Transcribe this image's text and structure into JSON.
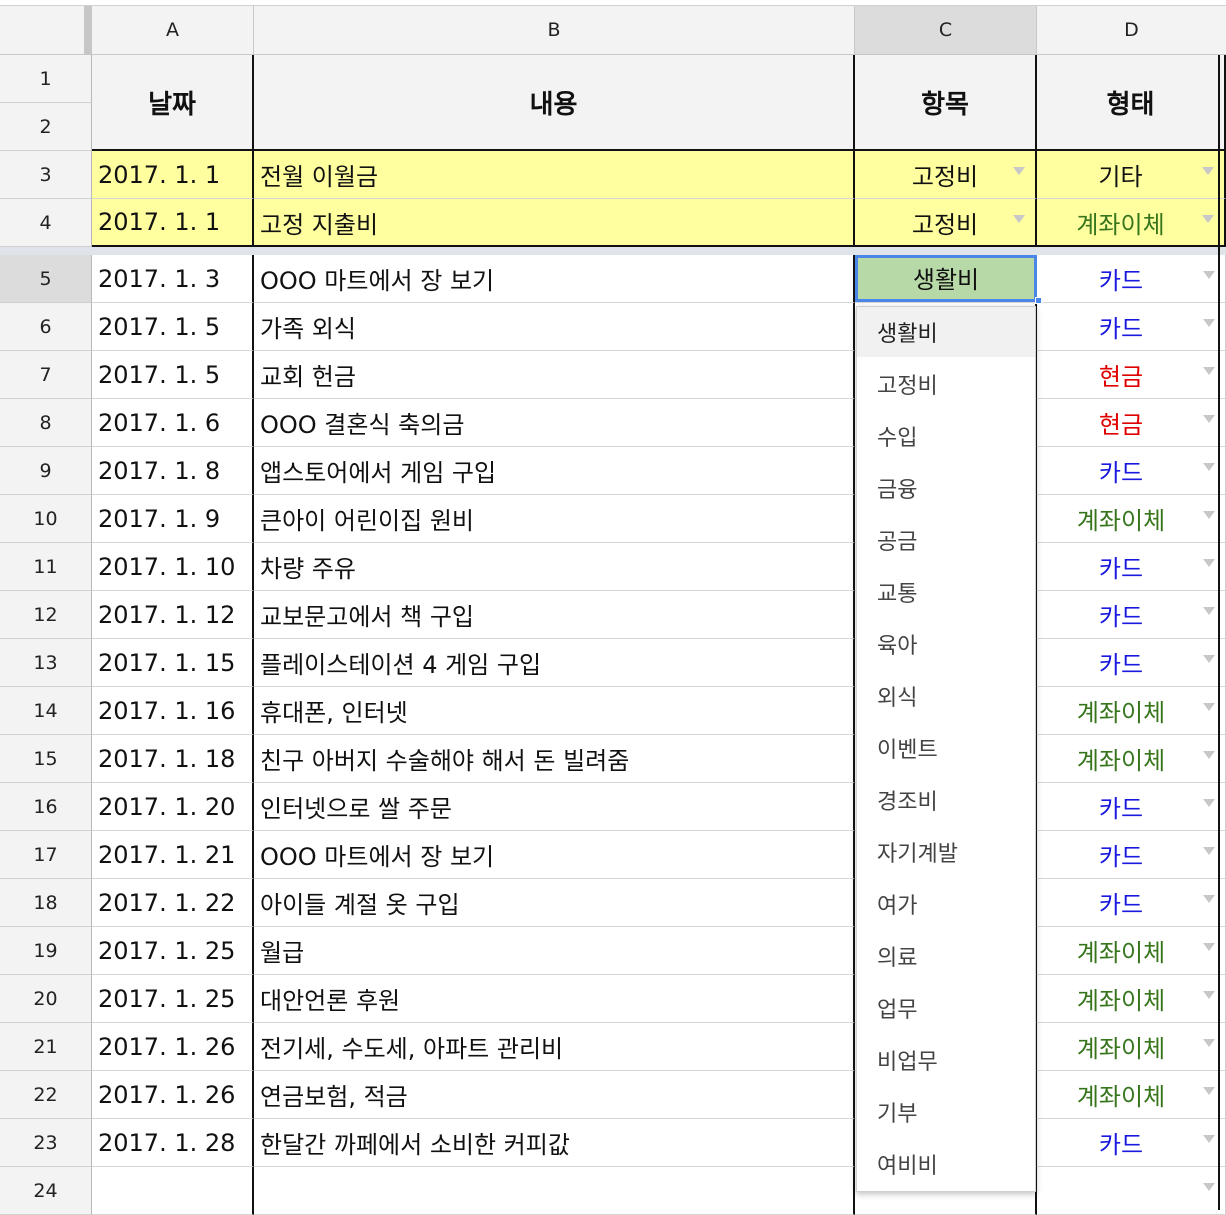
{
  "columns": [
    "A",
    "B",
    "C",
    "D"
  ],
  "header": {
    "date": "날짜",
    "desc": "내용",
    "category": "항목",
    "payment": "형태"
  },
  "colors": {
    "card": "#1a1adf",
    "cash": "#e00000",
    "transfer": "#38761d",
    "default": "#111111"
  },
  "rows": [
    {
      "num": "1"
    },
    {
      "num": "2"
    },
    {
      "num": "3",
      "date": "2017. 1. 1",
      "desc": "전월 이월금",
      "category": "고정비",
      "payment": "기타",
      "ptype": "default"
    },
    {
      "num": "4",
      "date": "2017. 1. 1",
      "desc": "고정 지출비",
      "category": "고정비",
      "payment": "계좌이체",
      "ptype": "transfer"
    },
    {
      "num": "5",
      "date": "2017. 1. 3",
      "desc": "OOO 마트에서 장 보기",
      "category": "생활비",
      "payment": "카드",
      "ptype": "card"
    },
    {
      "num": "6",
      "date": "2017. 1. 5",
      "desc": "가족 외식",
      "payment": "카드",
      "ptype": "card"
    },
    {
      "num": "7",
      "date": "2017. 1. 5",
      "desc": "교회 헌금",
      "payment": "현금",
      "ptype": "cash"
    },
    {
      "num": "8",
      "date": "2017. 1. 6",
      "desc": "OOO 결혼식 축의금",
      "payment": "현금",
      "ptype": "cash"
    },
    {
      "num": "9",
      "date": "2017. 1. 8",
      "desc": "앱스토어에서 게임 구입",
      "payment": "카드",
      "ptype": "card"
    },
    {
      "num": "10",
      "date": "2017. 1. 9",
      "desc": "큰아이 어린이집 원비",
      "payment": "계좌이체",
      "ptype": "transfer"
    },
    {
      "num": "11",
      "date": "2017. 1. 10",
      "desc": "차량 주유",
      "payment": "카드",
      "ptype": "card"
    },
    {
      "num": "12",
      "date": "2017. 1. 12",
      "desc": "교보문고에서 책 구입",
      "payment": "카드",
      "ptype": "card"
    },
    {
      "num": "13",
      "date": "2017. 1. 15",
      "desc": "플레이스테이션 4 게임 구입",
      "payment": "카드",
      "ptype": "card"
    },
    {
      "num": "14",
      "date": "2017. 1. 16",
      "desc": "휴대폰, 인터넷",
      "payment": "계좌이체",
      "ptype": "transfer"
    },
    {
      "num": "15",
      "date": "2017. 1. 18",
      "desc": "친구 아버지 수술해야 해서 돈 빌려줌",
      "payment": "계좌이체",
      "ptype": "transfer"
    },
    {
      "num": "16",
      "date": "2017. 1. 20",
      "desc": "인터넷으로 쌀 주문",
      "payment": "카드",
      "ptype": "card"
    },
    {
      "num": "17",
      "date": "2017. 1. 21",
      "desc": "OOO 마트에서 장 보기",
      "payment": "카드",
      "ptype": "card"
    },
    {
      "num": "18",
      "date": "2017. 1. 22",
      "desc": "아이들 계절 옷 구입",
      "payment": "카드",
      "ptype": "card"
    },
    {
      "num": "19",
      "date": "2017. 1. 25",
      "desc": "월급",
      "payment": "계좌이체",
      "ptype": "transfer"
    },
    {
      "num": "20",
      "date": "2017. 1. 25",
      "desc": "대안언론 후원",
      "payment": "계좌이체",
      "ptype": "transfer"
    },
    {
      "num": "21",
      "date": "2017. 1. 26",
      "desc": "전기세, 수도세, 아파트 관리비",
      "payment": "계좌이체",
      "ptype": "transfer"
    },
    {
      "num": "22",
      "date": "2017. 1. 26",
      "desc": "연금보험, 적금",
      "payment": "계좌이체",
      "ptype": "transfer"
    },
    {
      "num": "23",
      "date": "2017. 1. 28",
      "desc": "한달간 까페에서 소비한 커피값",
      "payment": "카드",
      "ptype": "card"
    },
    {
      "num": "24"
    }
  ],
  "selected_cell": {
    "value": "생활비"
  },
  "dropdown_options": [
    "생활비",
    "고정비",
    "수입",
    "금융",
    "공금",
    "교통",
    "육아",
    "외식",
    "이벤트",
    "경조비",
    "자기계발",
    "여가",
    "의료",
    "업무",
    "비업무",
    "기부",
    "여비비"
  ]
}
